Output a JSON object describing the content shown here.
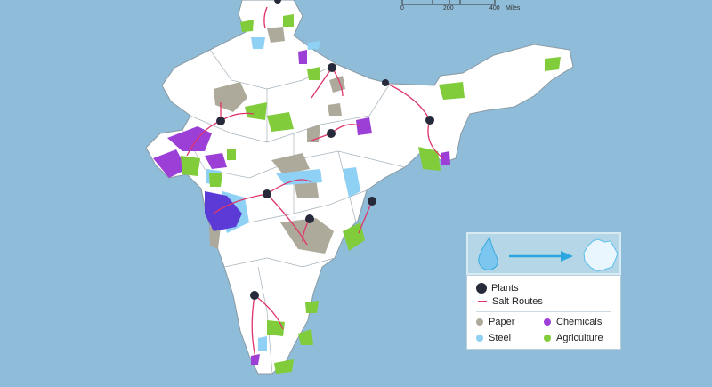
{
  "scale_bar": {
    "ticks": [
      "0",
      "200",
      "400"
    ],
    "unit": "Miles"
  },
  "legend": {
    "process_icons": [
      "water-drop-icon",
      "arrow-right-icon",
      "salt-crystal-icon"
    ],
    "plants": "Plants",
    "salt_routes": "Salt Routes",
    "categories": [
      {
        "label": "Paper",
        "color": "#aeaa9b"
      },
      {
        "label": "Chemicals",
        "color": "#9b3fd6"
      },
      {
        "label": "Steel",
        "color": "#8fd0f5"
      },
      {
        "label": "Agriculture",
        "color": "#80cc3a"
      }
    ]
  },
  "colors": {
    "water": "#8fbcd8",
    "land": "#ffffff",
    "border": "#8a9aa4",
    "route": "#e0356a",
    "plant": "#262a3a",
    "chemicals_dark": "#5b3ad6"
  }
}
